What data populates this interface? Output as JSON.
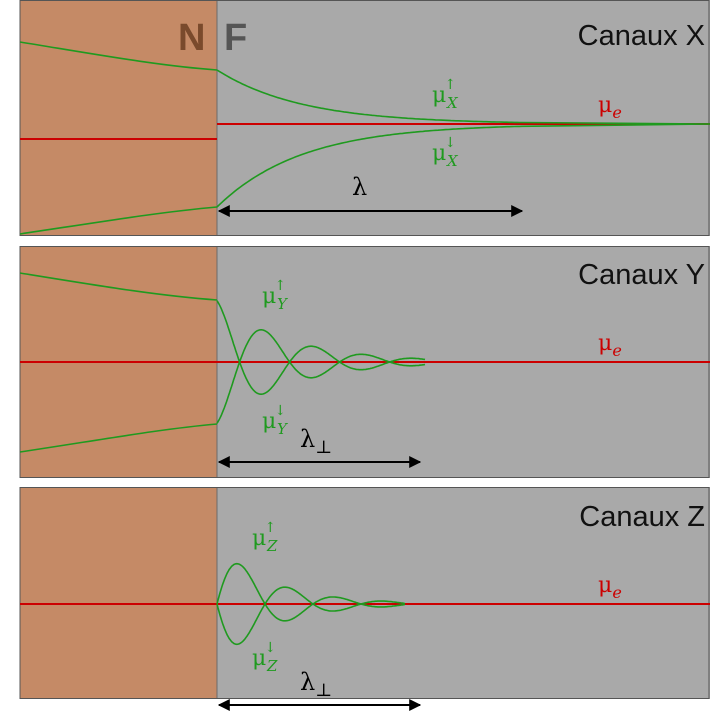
{
  "layer_labels": {
    "normal": "N",
    "ferro": "F"
  },
  "colors": {
    "normal_metal": "#c58a66",
    "ferromagnet": "#a9a9a9",
    "electrochemical_potential": "#cc0000",
    "spin_potentials": "#1f9a1f",
    "label_N": "#7a4a2c",
    "label_F": "#555555",
    "arrow": "#000000",
    "panel_border": "#555555"
  },
  "panels": [
    {
      "title": "Canaux X",
      "mu_e": {
        "base": "μ",
        "sub": "e"
      },
      "mu_up": {
        "base": "μ",
        "sup": "↑",
        "sub": "X"
      },
      "mu_down": {
        "base": "μ",
        "sup": "↓",
        "sub": "X"
      },
      "length_label": {
        "base": "λ",
        "sub": ""
      },
      "curve_mode": "decay"
    },
    {
      "title": "Canaux Y",
      "mu_e": {
        "base": "μ",
        "sub": "e"
      },
      "mu_up": {
        "base": "μ",
        "sup": "↑",
        "sub": "Y"
      },
      "mu_down": {
        "base": "μ",
        "sup": "↓",
        "sub": "Y"
      },
      "length_label": {
        "base": "λ",
        "sub": "⊥"
      },
      "curve_mode": "oscillate_offset"
    },
    {
      "title": "Canaux Z",
      "mu_e": {
        "base": "μ",
        "sub": "e"
      },
      "mu_up": {
        "base": "μ",
        "sup": "↑",
        "sub": "Z"
      },
      "mu_down": {
        "base": "μ",
        "sup": "↓",
        "sub": "Z"
      },
      "length_label": {
        "base": "λ",
        "sub": "⊥"
      },
      "curve_mode": "oscillate"
    }
  ]
}
